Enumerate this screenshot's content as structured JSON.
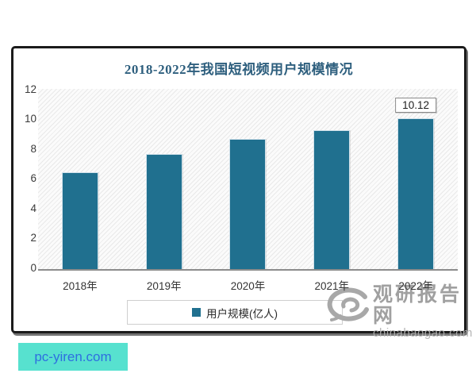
{
  "site_badge": {
    "label": "pc-yiren.com",
    "bg_color": "#57E1CF",
    "text_color": "#2E6FE0"
  },
  "watermark": {
    "brand": "观研报告网",
    "domain": "chinabaogao.com",
    "color": "#9b9b9b",
    "domain_color": "#b0b0b0"
  },
  "chart": {
    "title": "2018-2022年我国短视频用户规模情况",
    "title_color": "#2E5F7E",
    "legend_label": "用户规模(亿人)",
    "bar_color": "#20708F"
  },
  "chart_data": {
    "type": "bar",
    "title": "2018-2022年我国短视频用户规模情况",
    "categories": [
      "2018年",
      "2019年",
      "2020年",
      "2021年",
      "2022年"
    ],
    "series": [
      {
        "name": "用户规模(亿人)",
        "values": [
          6.48,
          7.73,
          8.73,
          9.34,
          10.12
        ]
      }
    ],
    "xlabel": "",
    "ylabel": "",
    "unit": "亿人",
    "ylim": [
      0,
      12
    ],
    "yticks": [
      0,
      2,
      4,
      6,
      8,
      10,
      12
    ],
    "grid": false,
    "legend_position": "bottom",
    "plot_background": "diagonal-hatch",
    "data_label": {
      "category": "2022年",
      "text": "10.12"
    }
  }
}
